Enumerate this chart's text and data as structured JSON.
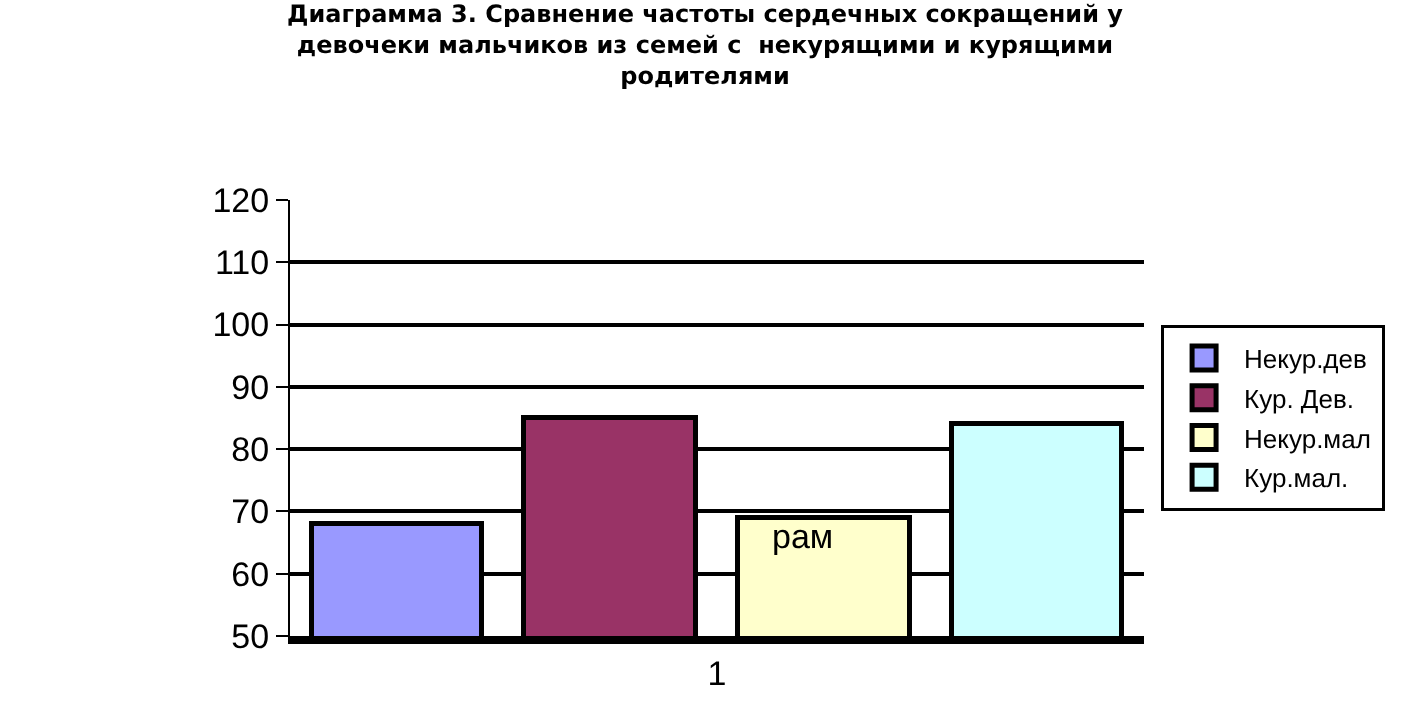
{
  "chart_data": {
    "type": "bar",
    "title": "Диаграмма 3. Сравнение частоты сердечных сокращений у\nдевочеки мальчиков из семей с  некурящими и курящими\nродителями",
    "categories": [
      "1"
    ],
    "series": [
      {
        "name": "Некур.дев",
        "color": "#9999ff",
        "values": [
          68
        ]
      },
      {
        "name": "Кур. Дев.",
        "color": "#993366",
        "values": [
          85
        ]
      },
      {
        "name": "Некур.мал",
        "color": "#ffffcc",
        "values": [
          69
        ]
      },
      {
        "name": "Кур.мал.",
        "color": "#ccffff",
        "values": [
          84
        ]
      }
    ],
    "annotations": [
      "рам"
    ],
    "ylim": [
      50,
      120
    ],
    "yticks": [
      50,
      60,
      70,
      80,
      90,
      100,
      110,
      120
    ],
    "grid": "y",
    "legend": "right"
  }
}
